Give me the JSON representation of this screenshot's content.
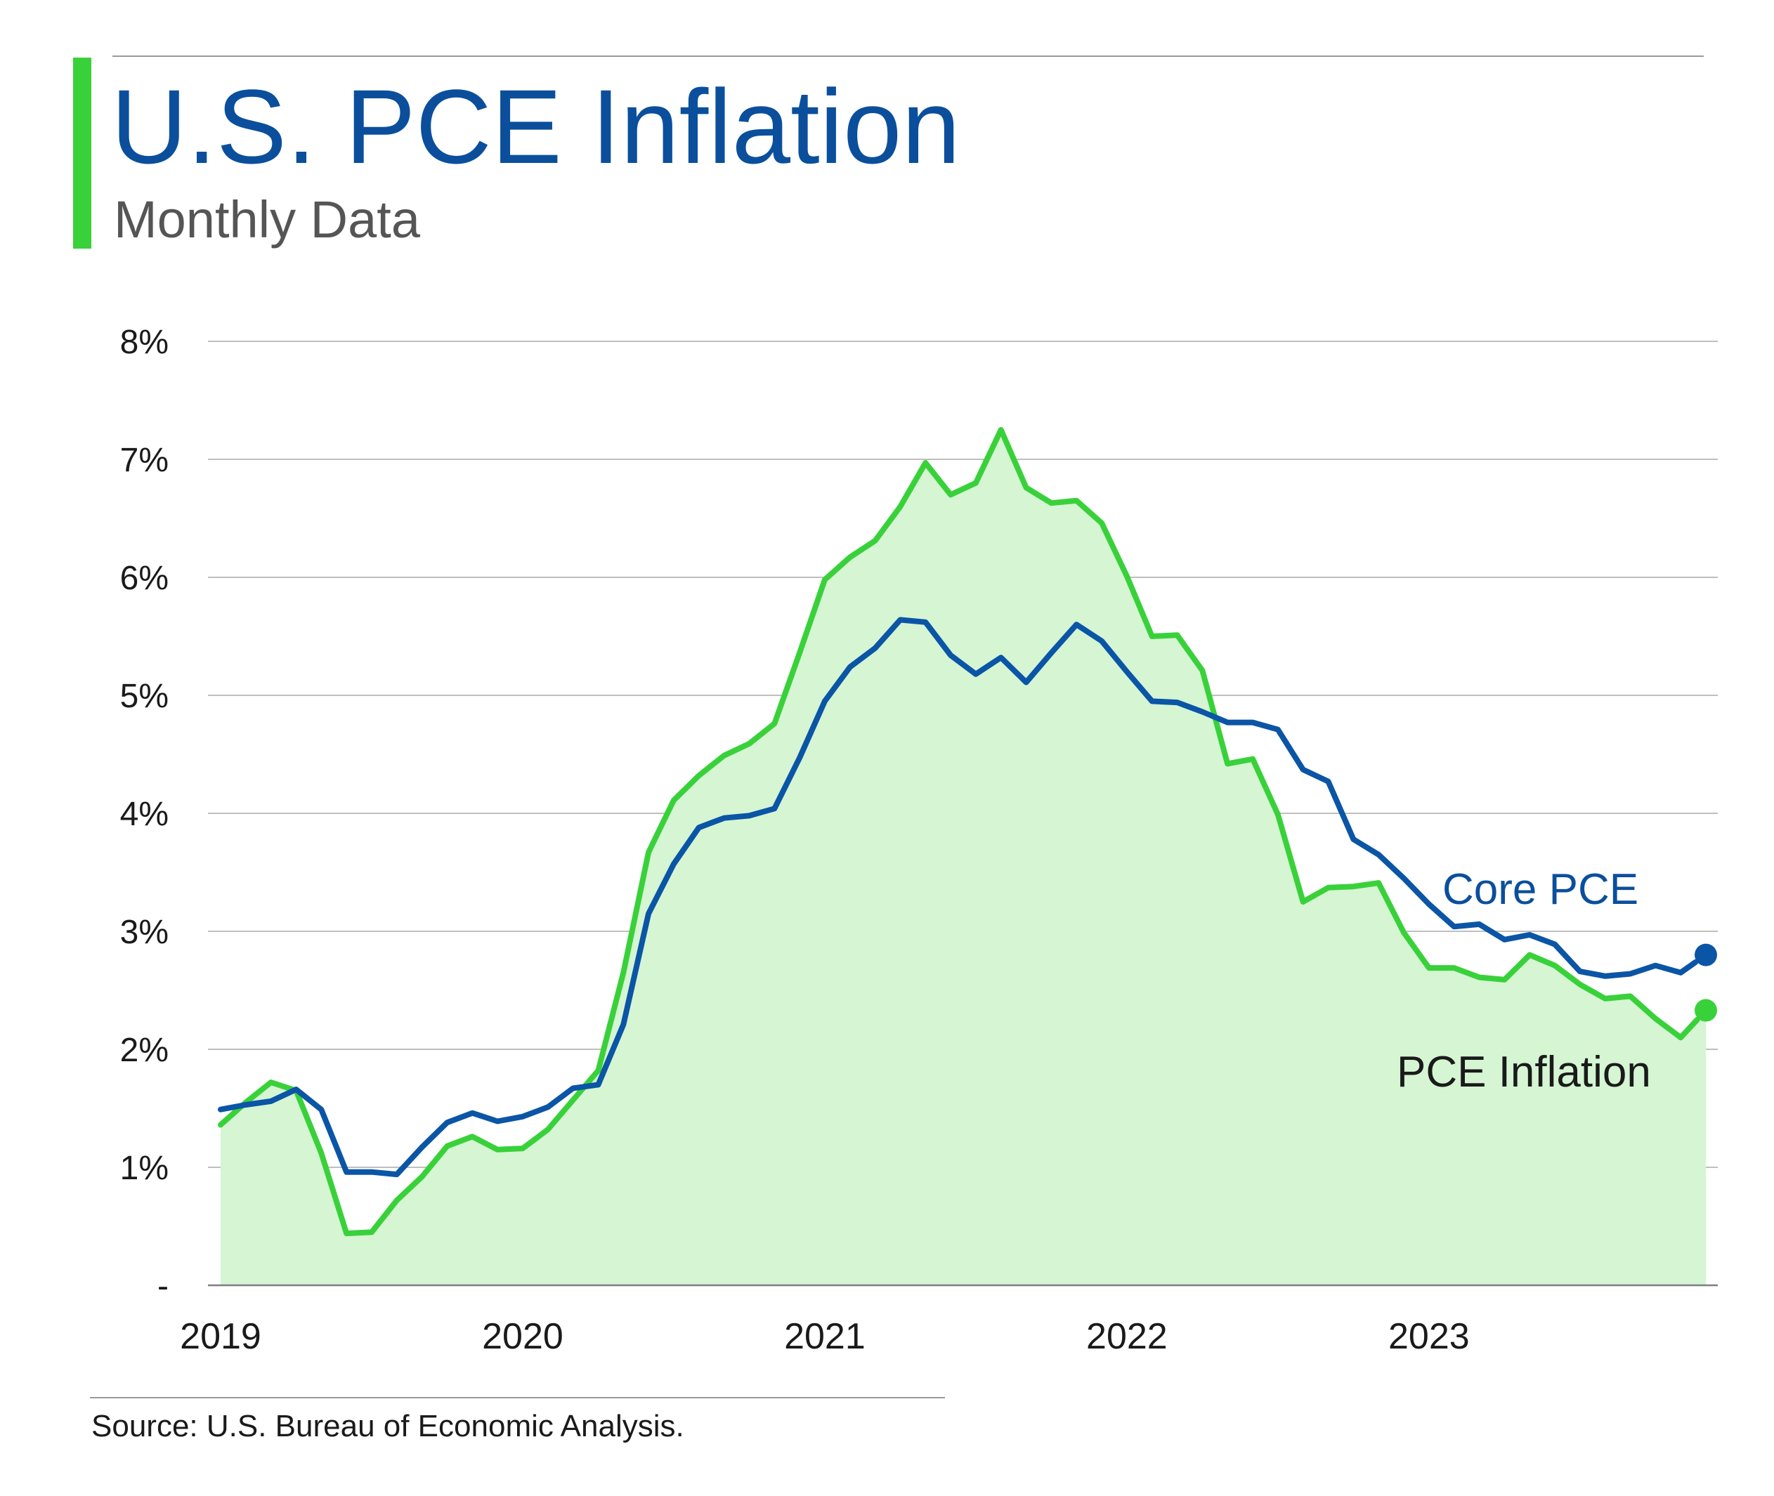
{
  "header": {
    "title": "U.S. PCE Inflation",
    "subtitle": "Monthly Data"
  },
  "footer": {
    "source": "Source: U.S. Bureau of Economic Analysis."
  },
  "colors": {
    "title": "#0B4F9C",
    "subtitle": "#555555",
    "accent_bar": "#39D13A",
    "core_pce": "#0B55A6",
    "pce": "#39D13A",
    "area_fill": "#D5F5D3",
    "grid": "#BFBFBF",
    "axis_text": "#1A1A1A",
    "rule": "#9A9A9A"
  },
  "chart_data": {
    "type": "line",
    "x_label": "",
    "y_label": "",
    "ylim": [
      0,
      8
    ],
    "y_ticks": [
      {
        "value": 0,
        "label": "-"
      },
      {
        "value": 1,
        "label": "1%"
      },
      {
        "value": 2,
        "label": "2%"
      },
      {
        "value": 3,
        "label": "3%"
      },
      {
        "value": 4,
        "label": "4%"
      },
      {
        "value": 5,
        "label": "5%"
      },
      {
        "value": 6,
        "label": "6%"
      },
      {
        "value": 7,
        "label": "7%"
      },
      {
        "value": 8,
        "label": "8%"
      }
    ],
    "x_ticks": [
      "2019",
      "2020",
      "2021",
      "2022",
      "2023"
    ],
    "grid": true,
    "x": [
      "2019-01",
      "2019-02",
      "2019-03",
      "2019-04",
      "2019-05",
      "2019-06",
      "2019-07",
      "2019-08",
      "2019-09",
      "2019-10",
      "2019-11",
      "2019-12",
      "2020-01",
      "2020-02",
      "2020-03",
      "2020-04",
      "2020-05",
      "2020-06",
      "2020-07",
      "2020-08",
      "2020-09",
      "2020-10",
      "2020-11",
      "2020-12",
      "2021-01",
      "2021-02",
      "2021-03",
      "2021-04",
      "2021-05",
      "2021-06",
      "2021-07",
      "2021-08",
      "2021-09",
      "2021-10",
      "2021-11",
      "2021-12",
      "2022-01",
      "2022-02",
      "2022-03",
      "2022-04",
      "2022-05",
      "2022-06",
      "2022-07",
      "2022-08",
      "2022-09",
      "2022-10",
      "2022-11",
      "2022-12",
      "2023-01",
      "2023-02",
      "2023-03",
      "2023-04",
      "2023-05",
      "2023-06",
      "2023-07",
      "2023-08",
      "2023-09",
      "2023-10",
      "2023-11",
      "2023-12"
    ],
    "series": [
      {
        "name": "PCE Inflation",
        "color": "#39D13A",
        "filled": true,
        "values": [
          1.36,
          1.55,
          1.72,
          1.65,
          1.12,
          0.44,
          0.45,
          0.72,
          0.92,
          1.18,
          1.26,
          1.15,
          1.16,
          1.32,
          1.57,
          1.82,
          2.65,
          3.67,
          4.11,
          4.32,
          4.49,
          4.59,
          4.76,
          5.36,
          5.98,
          6.17,
          6.31,
          6.6,
          6.97,
          6.7,
          6.8,
          7.25,
          6.76,
          6.63,
          6.65,
          6.46,
          6.01,
          5.5,
          5.51,
          5.21,
          4.42,
          4.46,
          3.99,
          3.25,
          3.37,
          3.38,
          3.41,
          2.99,
          2.69,
          2.69,
          2.61,
          2.59,
          2.8,
          2.71,
          2.55,
          2.43,
          2.45,
          2.26,
          2.1,
          2.33
        ]
      },
      {
        "name": "Core PCE",
        "color": "#0B55A6",
        "filled": false,
        "values": [
          1.49,
          1.53,
          1.56,
          1.66,
          1.49,
          0.96,
          0.96,
          0.94,
          1.17,
          1.38,
          1.46,
          1.39,
          1.43,
          1.51,
          1.67,
          1.7,
          2.21,
          3.15,
          3.57,
          3.88,
          3.96,
          3.98,
          4.04,
          4.47,
          4.95,
          5.24,
          5.4,
          5.64,
          5.62,
          5.34,
          5.18,
          5.32,
          5.11,
          5.36,
          5.6,
          5.46,
          5.2,
          4.95,
          4.94,
          4.86,
          4.77,
          4.77,
          4.71,
          4.37,
          4.27,
          3.78,
          3.65,
          3.45,
          3.23,
          3.04,
          3.06,
          2.93,
          2.97,
          2.89,
          2.66,
          2.62,
          2.64,
          2.71,
          2.65,
          2.8
        ]
      }
    ],
    "end_labels": {
      "core_pce": "Core PCE",
      "pce": "PCE Inflation"
    }
  }
}
